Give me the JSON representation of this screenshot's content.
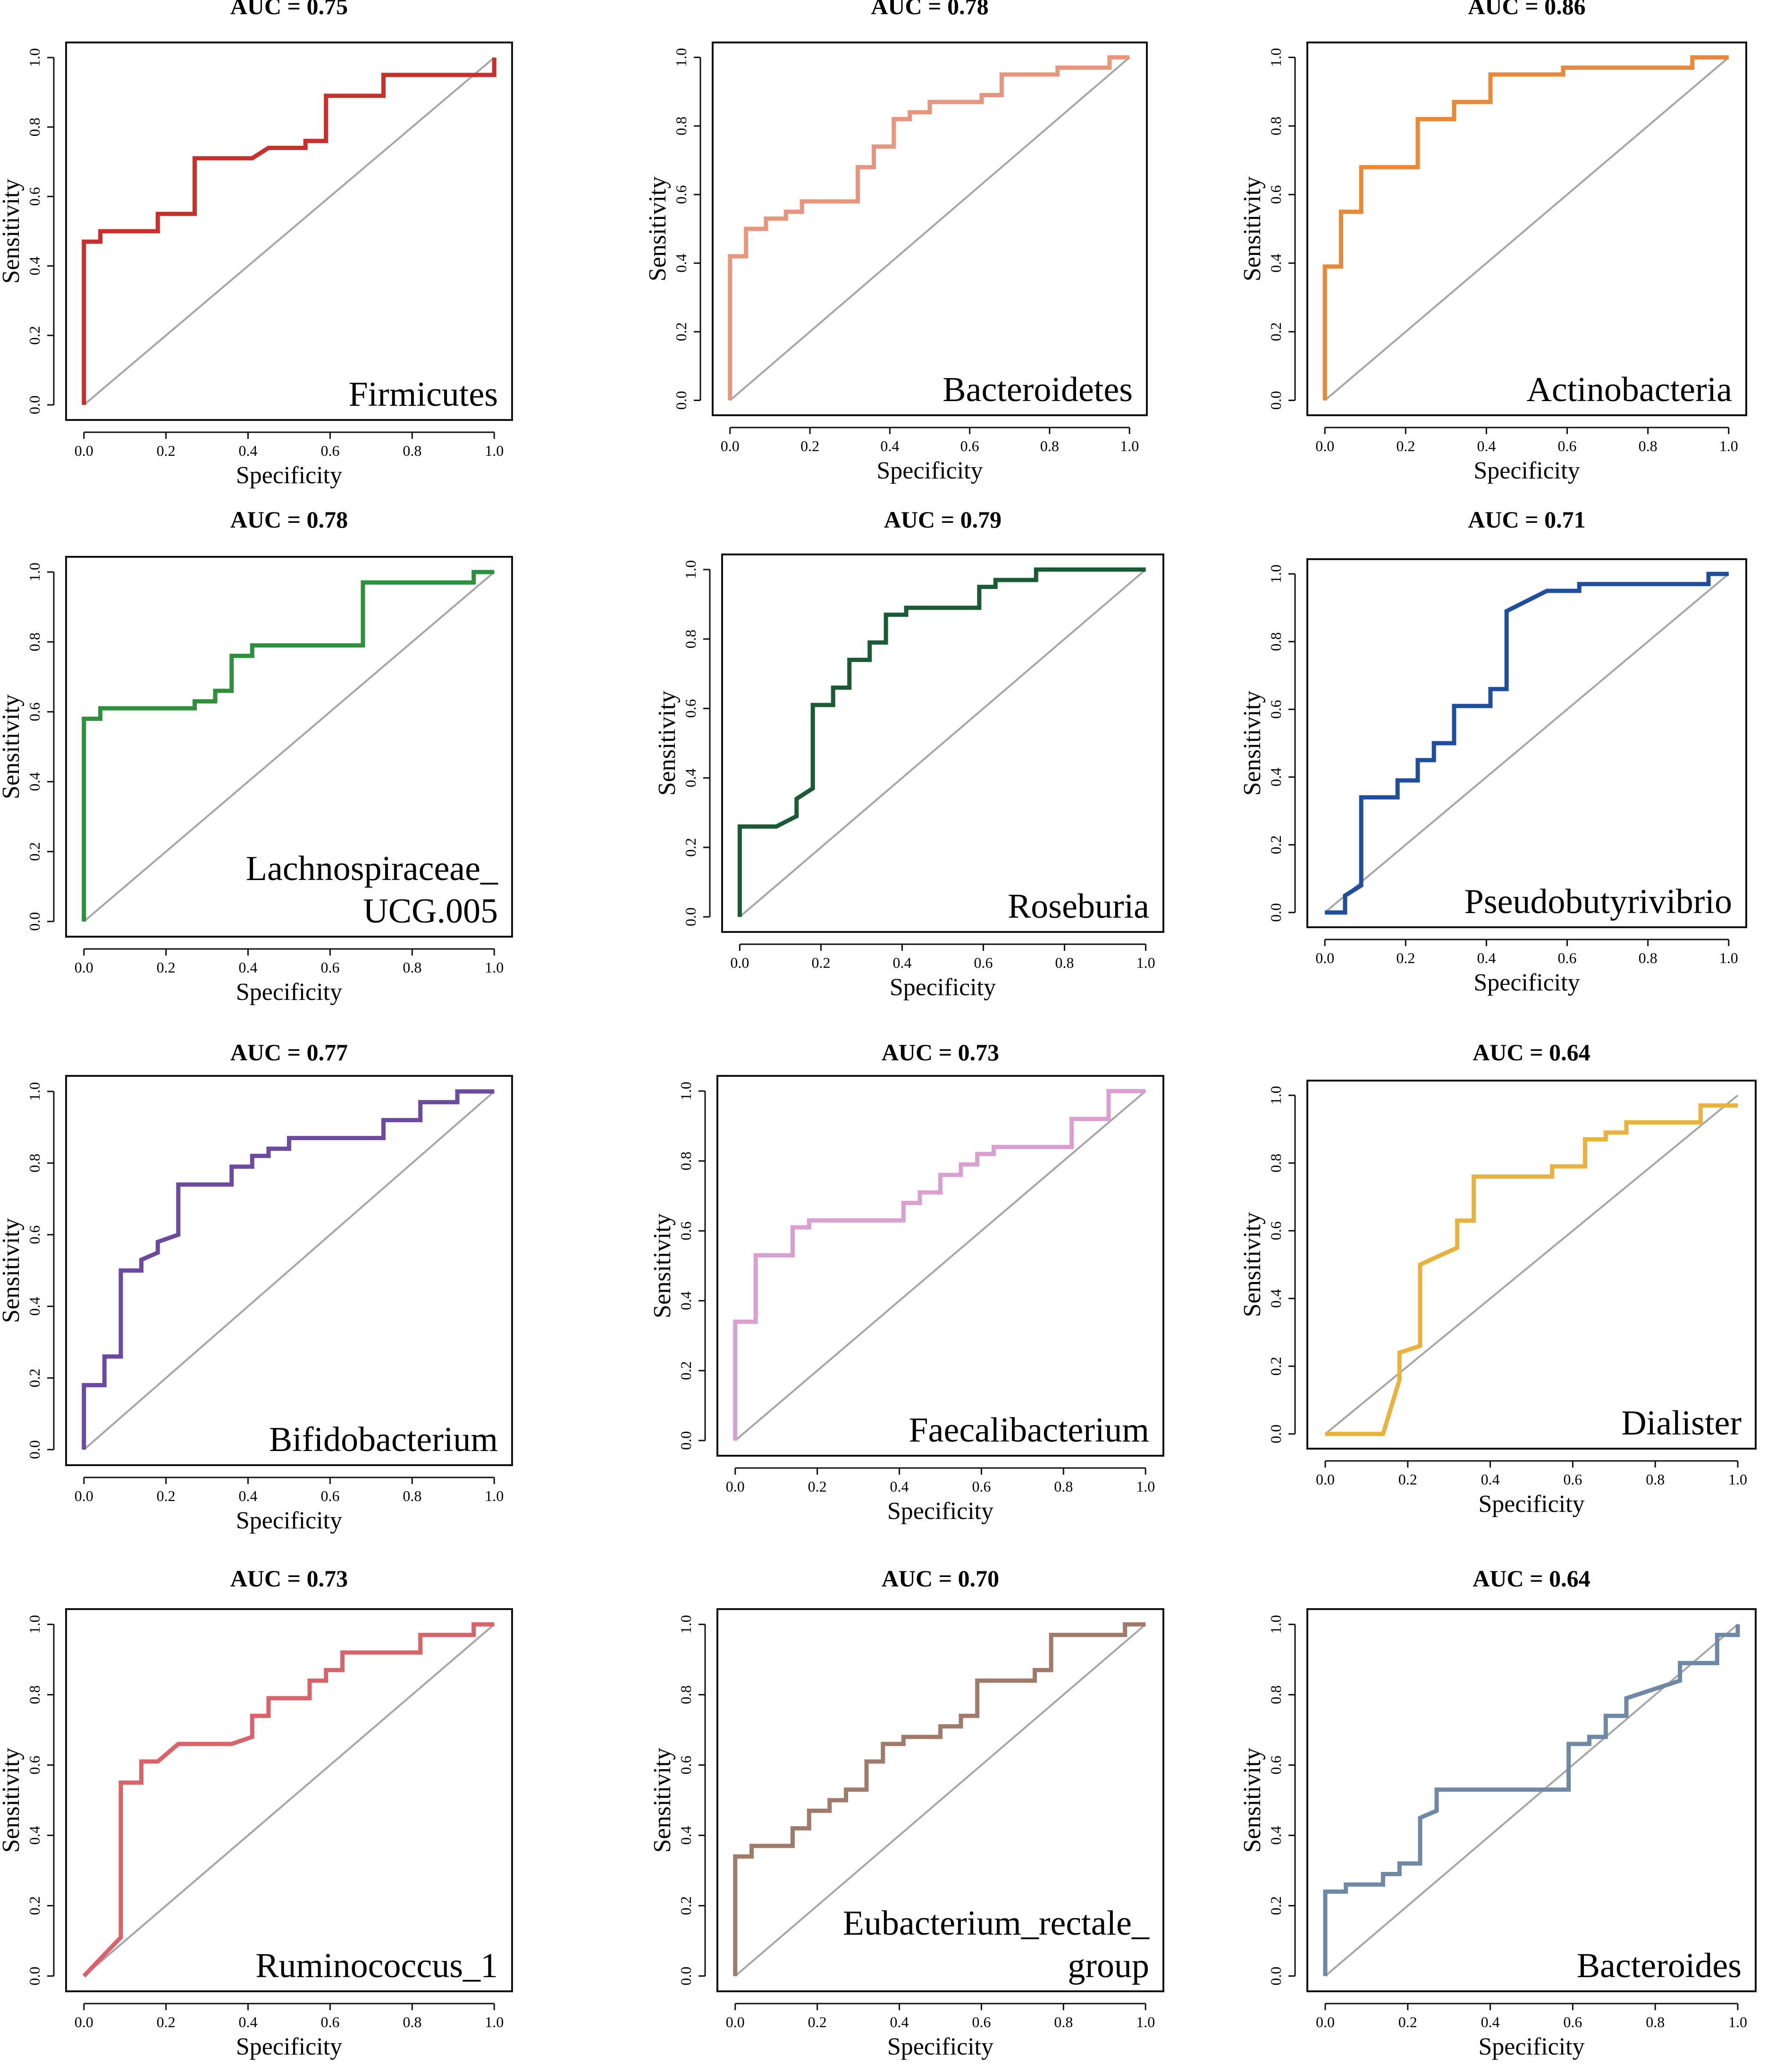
{
  "figure": {
    "xlabel": "Specificity",
    "ylabel": "Sensitivity",
    "tick_labels": [
      "0.0",
      "0.2",
      "0.4",
      "0.6",
      "0.8",
      "1.0"
    ],
    "reference_line_color": "#a6a6a6",
    "axis_color": "#111111"
  },
  "chart_data": [
    {
      "type": "line",
      "title": "AUC = 0.75",
      "label_lines": [
        "Firmicutes"
      ],
      "color": "#c9302c",
      "xlabel": "Specificity",
      "ylabel": "Sensitivity",
      "xlim": [
        0,
        1
      ],
      "ylim": [
        0,
        1
      ],
      "x": [
        0.0,
        0.0,
        0.04,
        0.04,
        0.18,
        0.18,
        0.27,
        0.27,
        0.41,
        0.45,
        0.54,
        0.54,
        0.59,
        0.59,
        0.73,
        0.73,
        1.0,
        1.0
      ],
      "y": [
        0.0,
        0.47,
        0.47,
        0.5,
        0.5,
        0.55,
        0.55,
        0.71,
        0.71,
        0.74,
        0.74,
        0.76,
        0.76,
        0.89,
        0.89,
        0.95,
        0.95,
        1.0
      ]
    },
    {
      "type": "line",
      "title": "AUC = 0.78",
      "label_lines": [
        "Bacteroidetes"
      ],
      "color": "#e8957e",
      "xlabel": "Specificity",
      "ylabel": "Sensitivity",
      "xlim": [
        0,
        1
      ],
      "ylim": [
        0,
        1
      ],
      "x": [
        0.0,
        0.0,
        0.04,
        0.04,
        0.09,
        0.09,
        0.14,
        0.14,
        0.18,
        0.18,
        0.32,
        0.32,
        0.36,
        0.36,
        0.41,
        0.41,
        0.45,
        0.45,
        0.5,
        0.5,
        0.63,
        0.63,
        0.68,
        0.68,
        0.82,
        0.82,
        0.95,
        0.95,
        1.0
      ],
      "y": [
        0.0,
        0.42,
        0.42,
        0.5,
        0.5,
        0.53,
        0.53,
        0.55,
        0.55,
        0.58,
        0.58,
        0.68,
        0.68,
        0.74,
        0.74,
        0.82,
        0.82,
        0.84,
        0.84,
        0.87,
        0.87,
        0.89,
        0.89,
        0.95,
        0.95,
        0.97,
        0.97,
        1.0,
        1.0
      ]
    },
    {
      "type": "line",
      "title": "AUC = 0.86",
      "label_lines": [
        "Actinobacteria"
      ],
      "color": "#e8893a",
      "xlabel": "Specificity",
      "ylabel": "Sensitivity",
      "xlim": [
        0,
        1
      ],
      "ylim": [
        0,
        1
      ],
      "x": [
        0.0,
        0.0,
        0.04,
        0.04,
        0.09,
        0.09,
        0.23,
        0.23,
        0.32,
        0.32,
        0.41,
        0.41,
        0.59,
        0.59,
        0.91,
        0.91,
        1.0
      ],
      "y": [
        0.0,
        0.39,
        0.39,
        0.55,
        0.55,
        0.68,
        0.68,
        0.82,
        0.82,
        0.87,
        0.87,
        0.95,
        0.95,
        0.97,
        0.97,
        1.0,
        1.0
      ]
    },
    {
      "type": "line",
      "title": "AUC = 0.78",
      "label_lines": [
        "Lachnospiraceae_",
        "UCG.005"
      ],
      "color": "#2e8f3c",
      "xlabel": "Specificity",
      "ylabel": "Sensitivity",
      "xlim": [
        0,
        1
      ],
      "ylim": [
        0,
        1
      ],
      "x": [
        0.0,
        0.0,
        0.04,
        0.04,
        0.27,
        0.27,
        0.32,
        0.32,
        0.36,
        0.36,
        0.41,
        0.41,
        0.68,
        0.68,
        0.95,
        0.95,
        1.0
      ],
      "y": [
        0.0,
        0.58,
        0.58,
        0.61,
        0.61,
        0.63,
        0.63,
        0.66,
        0.66,
        0.76,
        0.76,
        0.79,
        0.79,
        0.97,
        0.97,
        1.0,
        1.0
      ]
    },
    {
      "type": "line",
      "title": "AUC = 0.79",
      "label_lines": [
        "Roseburia"
      ],
      "color": "#1a5b35",
      "xlabel": "Specificity",
      "ylabel": "Sensitivity",
      "xlim": [
        0,
        1
      ],
      "ylim": [
        0,
        1
      ],
      "x": [
        0.0,
        0.0,
        0.09,
        0.14,
        0.14,
        0.18,
        0.18,
        0.23,
        0.23,
        0.27,
        0.27,
        0.32,
        0.32,
        0.36,
        0.36,
        0.41,
        0.41,
        0.59,
        0.59,
        0.63,
        0.63,
        0.73,
        0.73,
        1.0
      ],
      "y": [
        0.0,
        0.26,
        0.26,
        0.29,
        0.34,
        0.37,
        0.61,
        0.61,
        0.66,
        0.66,
        0.74,
        0.74,
        0.79,
        0.79,
        0.87,
        0.87,
        0.89,
        0.89,
        0.95,
        0.95,
        0.97,
        0.97,
        1.0,
        1.0
      ]
    },
    {
      "type": "line",
      "title": "AUC = 0.71",
      "label_lines": [
        "Pseudobutyrivibrio"
      ],
      "color": "#1f4e9c",
      "xlabel": "Specificity",
      "ylabel": "Sensitivity",
      "xlim": [
        0,
        1
      ],
      "ylim": [
        0,
        1
      ],
      "x": [
        0.0,
        0.05,
        0.05,
        0.09,
        0.09,
        0.18,
        0.18,
        0.23,
        0.23,
        0.27,
        0.27,
        0.32,
        0.32,
        0.41,
        0.41,
        0.45,
        0.45,
        0.5,
        0.55,
        0.63,
        0.63,
        0.95,
        0.95,
        1.0
      ],
      "y": [
        0.0,
        0.0,
        0.05,
        0.08,
        0.34,
        0.34,
        0.39,
        0.39,
        0.45,
        0.45,
        0.5,
        0.5,
        0.61,
        0.61,
        0.66,
        0.66,
        0.89,
        0.92,
        0.95,
        0.95,
        0.97,
        0.97,
        1.0,
        1.0
      ]
    },
    {
      "type": "line",
      "title": "AUC = 0.77",
      "label_lines": [
        "Bifidobacterium"
      ],
      "color": "#6b4aa0",
      "xlabel": "Specificity",
      "ylabel": "Sensitivity",
      "xlim": [
        0,
        1
      ],
      "ylim": [
        0,
        1
      ],
      "x": [
        0.0,
        0.0,
        0.05,
        0.05,
        0.09,
        0.09,
        0.14,
        0.14,
        0.18,
        0.18,
        0.23,
        0.23,
        0.36,
        0.36,
        0.41,
        0.41,
        0.45,
        0.45,
        0.5,
        0.5,
        0.73,
        0.73,
        0.82,
        0.82,
        0.91,
        0.91,
        1.0
      ],
      "y": [
        0.0,
        0.18,
        0.18,
        0.26,
        0.26,
        0.5,
        0.5,
        0.53,
        0.55,
        0.58,
        0.6,
        0.74,
        0.74,
        0.79,
        0.79,
        0.82,
        0.82,
        0.84,
        0.84,
        0.87,
        0.87,
        0.92,
        0.92,
        0.97,
        0.97,
        1.0,
        1.0
      ]
    },
    {
      "type": "line",
      "title": "AUC = 0.73",
      "label_lines": [
        "Faecalibacterium"
      ],
      "color": "#d99fd0",
      "xlabel": "Specificity",
      "ylabel": "Sensitivity",
      "xlim": [
        0,
        1
      ],
      "ylim": [
        0,
        1
      ],
      "x": [
        0.0,
        0.0,
        0.05,
        0.05,
        0.14,
        0.14,
        0.18,
        0.18,
        0.41,
        0.41,
        0.45,
        0.45,
        0.5,
        0.5,
        0.55,
        0.55,
        0.59,
        0.59,
        0.63,
        0.63,
        0.82,
        0.82,
        0.91,
        0.91,
        1.0
      ],
      "y": [
        0.0,
        0.34,
        0.34,
        0.53,
        0.53,
        0.61,
        0.61,
        0.63,
        0.63,
        0.68,
        0.68,
        0.71,
        0.71,
        0.76,
        0.76,
        0.79,
        0.79,
        0.82,
        0.82,
        0.84,
        0.84,
        0.92,
        0.92,
        1.0,
        1.0
      ]
    },
    {
      "type": "line",
      "title": "AUC = 0.64",
      "label_lines": [
        "Dialister"
      ],
      "color": "#e8b23c",
      "xlabel": "Specificity",
      "ylabel": "Sensitivity",
      "xlim": [
        0,
        1
      ],
      "ylim": [
        0,
        1
      ],
      "x": [
        0.0,
        0.14,
        0.18,
        0.18,
        0.23,
        0.23,
        0.32,
        0.32,
        0.36,
        0.36,
        0.55,
        0.55,
        0.63,
        0.63,
        0.68,
        0.68,
        0.73,
        0.73,
        0.91,
        0.91,
        1.0
      ],
      "y": [
        0.0,
        0.0,
        0.16,
        0.24,
        0.26,
        0.5,
        0.55,
        0.63,
        0.63,
        0.76,
        0.76,
        0.79,
        0.79,
        0.87,
        0.87,
        0.89,
        0.89,
        0.92,
        0.92,
        0.97,
        0.97
      ]
    },
    {
      "type": "line",
      "title": "AUC = 0.73",
      "label_lines": [
        "Ruminococcus_1"
      ],
      "color": "#d9636b",
      "xlabel": "Specificity",
      "ylabel": "Sensitivity",
      "xlim": [
        0,
        1
      ],
      "ylim": [
        0,
        1
      ],
      "x": [
        0.0,
        0.09,
        0.09,
        0.14,
        0.14,
        0.18,
        0.23,
        0.23,
        0.36,
        0.41,
        0.41,
        0.45,
        0.45,
        0.55,
        0.55,
        0.59,
        0.59,
        0.63,
        0.63,
        0.82,
        0.82,
        0.95,
        0.95,
        1.0
      ],
      "y": [
        0.0,
        0.11,
        0.55,
        0.55,
        0.61,
        0.61,
        0.66,
        0.66,
        0.66,
        0.68,
        0.74,
        0.74,
        0.79,
        0.79,
        0.84,
        0.84,
        0.87,
        0.87,
        0.92,
        0.92,
        0.97,
        0.97,
        1.0,
        1.0
      ]
    },
    {
      "type": "line",
      "title": "AUC = 0.70",
      "label_lines": [
        "Eubacterium_rectale_",
        "group"
      ],
      "color": "#a07a6a",
      "xlabel": "Specificity",
      "ylabel": "Sensitivity",
      "xlim": [
        0,
        1
      ],
      "ylim": [
        0,
        1
      ],
      "x": [
        0.0,
        0.0,
        0.04,
        0.04,
        0.14,
        0.14,
        0.18,
        0.18,
        0.23,
        0.23,
        0.27,
        0.27,
        0.32,
        0.32,
        0.36,
        0.36,
        0.41,
        0.41,
        0.5,
        0.5,
        0.55,
        0.55,
        0.59,
        0.59,
        0.73,
        0.73,
        0.77,
        0.77,
        0.95,
        0.95,
        1.0
      ],
      "y": [
        0.0,
        0.34,
        0.34,
        0.37,
        0.37,
        0.42,
        0.42,
        0.47,
        0.47,
        0.5,
        0.5,
        0.53,
        0.53,
        0.61,
        0.61,
        0.66,
        0.66,
        0.68,
        0.68,
        0.71,
        0.71,
        0.74,
        0.74,
        0.84,
        0.84,
        0.87,
        0.87,
        0.97,
        0.97,
        1.0,
        1.0
      ]
    },
    {
      "type": "line",
      "title": "AUC = 0.64",
      "label_lines": [
        "Bacteroides"
      ],
      "color": "#6e88a6",
      "xlabel": "Specificity",
      "ylabel": "Sensitivity",
      "xlim": [
        0,
        1
      ],
      "ylim": [
        0,
        1
      ],
      "x": [
        0.0,
        0.0,
        0.05,
        0.05,
        0.14,
        0.14,
        0.18,
        0.18,
        0.23,
        0.23,
        0.27,
        0.27,
        0.59,
        0.59,
        0.64,
        0.64,
        0.68,
        0.68,
        0.73,
        0.73,
        0.86,
        0.86,
        0.95,
        0.95,
        1.0,
        1.0
      ],
      "y": [
        0.0,
        0.24,
        0.24,
        0.26,
        0.26,
        0.29,
        0.29,
        0.32,
        0.32,
        0.45,
        0.47,
        0.53,
        0.53,
        0.66,
        0.66,
        0.68,
        0.68,
        0.74,
        0.74,
        0.79,
        0.84,
        0.89,
        0.89,
        0.97,
        0.97,
        1.0
      ]
    }
  ]
}
